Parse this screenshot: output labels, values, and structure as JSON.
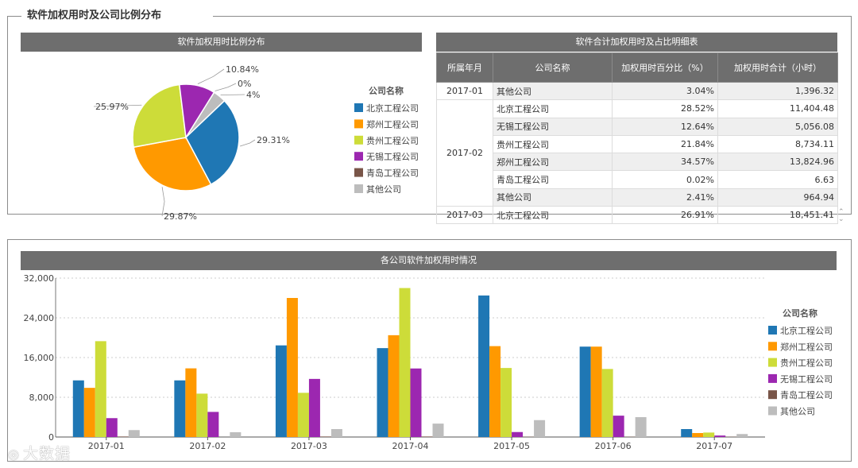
{
  "page": {
    "title": "软件加权用时及公司比例分布"
  },
  "pie_section": {
    "header": "软件加权用时比例分布"
  },
  "table_section": {
    "header": "软件合计加权用时及占比明细表",
    "columns": [
      "所属年月",
      "公司名称",
      "加权用时百分比（%）",
      "加权用时合计（小时）"
    ],
    "groups": [
      {
        "month": "2017-01",
        "rows": [
          {
            "company": "其他公司",
            "percent": "3.04%",
            "hours": "1,396.32"
          }
        ]
      },
      {
        "month": "2017-02",
        "rows": [
          {
            "company": "北京工程公司",
            "percent": "28.52%",
            "hours": "11,404.48"
          },
          {
            "company": "无锡工程公司",
            "percent": "12.64%",
            "hours": "5,056.08"
          },
          {
            "company": "贵州工程公司",
            "percent": "21.84%",
            "hours": "8,734.11"
          },
          {
            "company": "郑州工程公司",
            "percent": "34.57%",
            "hours": "13,824.96"
          },
          {
            "company": "青岛工程公司",
            "percent": "0.02%",
            "hours": "6.63"
          },
          {
            "company": "其他公司",
            "percent": "2.41%",
            "hours": "964.94"
          }
        ]
      },
      {
        "month": "2017-03",
        "rows": [
          {
            "company": "北京工程公司",
            "percent": "26.91%",
            "hours": "18,451.41"
          }
        ]
      }
    ]
  },
  "bar_section": {
    "header": "各公司软件加权用时情况"
  },
  "watermark": {
    "text": "大数据 ",
    "icon": "weibo-icon"
  },
  "colors": {
    "北京工程公司": "#1f77b4",
    "郑州工程公司": "#ff9900",
    "贵州工程公司": "#cddc39",
    "无锡工程公司": "#9c27b0",
    "青岛工程公司": "#795548",
    "其他公司": "#bdbdbd"
  },
  "chart_data": [
    {
      "type": "pie",
      "title": "软件加权用时比例分布",
      "legend_title": "公司名称",
      "legend": [
        "北京工程公司",
        "郑州工程公司",
        "贵州工程公司",
        "无锡工程公司",
        "青岛工程公司",
        "其他公司"
      ],
      "slices": [
        {
          "name": "北京工程公司",
          "value": 29.31,
          "label": "29.31%"
        },
        {
          "name": "郑州工程公司",
          "value": 29.87,
          "label": "29.87%"
        },
        {
          "name": "贵州工程公司",
          "value": 25.97,
          "label": "25.97%"
        },
        {
          "name": "无锡工程公司",
          "value": 10.84,
          "label": "10.84%"
        },
        {
          "name": "青岛工程公司",
          "value": 0.0,
          "label": "0%"
        },
        {
          "name": "其他公司",
          "value": 4.0,
          "label": "4%"
        }
      ]
    },
    {
      "type": "bar",
      "title": "各公司软件加权用时情况",
      "legend_title": "公司名称",
      "categories": [
        "2017-01",
        "2017-02",
        "2017-03",
        "2017-04",
        "2017-05",
        "2017-06",
        "2017-07"
      ],
      "ylim": [
        0,
        32000
      ],
      "yticks": [
        0,
        8000,
        16000,
        24000,
        32000
      ],
      "ytick_labels": [
        "0",
        "8,000",
        "16,000",
        "24,000",
        "32,000"
      ],
      "series": [
        {
          "name": "北京工程公司",
          "values": [
            11404,
            11404,
            18451,
            17900,
            28500,
            18200,
            1600
          ]
        },
        {
          "name": "郑州工程公司",
          "values": [
            9900,
            13825,
            28000,
            20500,
            18300,
            18200,
            800
          ]
        },
        {
          "name": "贵州工程公司",
          "values": [
            19300,
            8734,
            8900,
            30000,
            13900,
            13700,
            900
          ]
        },
        {
          "name": "无锡工程公司",
          "values": [
            3800,
            5056,
            11700,
            13800,
            1000,
            4300,
            300
          ]
        },
        {
          "name": "青岛工程公司",
          "values": [
            100,
            7,
            100,
            100,
            50,
            50,
            50
          ]
        },
        {
          "name": "其他公司",
          "values": [
            1396,
            965,
            1600,
            2700,
            3400,
            4000,
            600
          ]
        }
      ]
    }
  ]
}
